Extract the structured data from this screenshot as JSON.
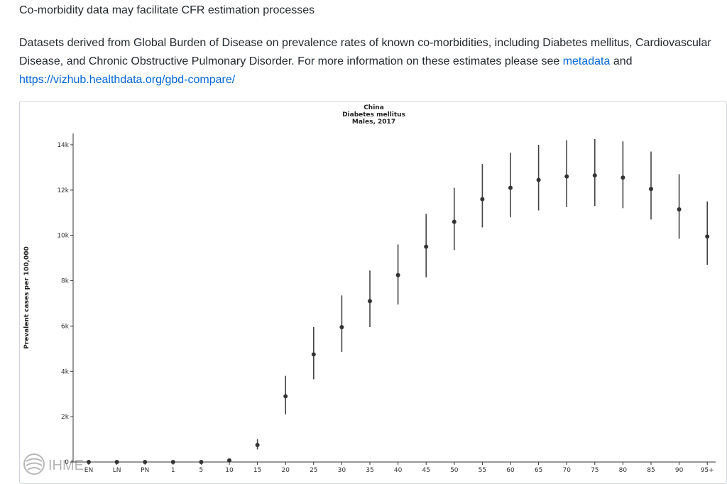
{
  "section": {
    "heading": "Co-morbidity data may facilitate CFR estimation processes",
    "paragraph": "Datasets derived from Global Burden of Disease on prevalence rates of known co-morbidities, including Diabetes mellitus, Cardiovascular Disease, and Chronic Obstructive Pulmonary Disorder. For more information on these estimates please see ",
    "link_metadata": "metadata",
    "and_text": " and ",
    "link_gbd": "https://vizhub.healthdata.org/gbd-compare/"
  },
  "logo": {
    "text": "IHME"
  },
  "colors": {
    "point": "#333333",
    "errorbar": "#444444",
    "link": "#0366d6"
  },
  "chart_data": {
    "type": "scatter",
    "title_lines": [
      "China",
      "Diabetes mellitus",
      "Males, 2017"
    ],
    "xlabel": "",
    "ylabel": "Prevalent cases per 100,000",
    "categories": [
      "EN",
      "LN",
      "PN",
      "1",
      "5",
      "10",
      "15",
      "20",
      "25",
      "30",
      "35",
      "40",
      "45",
      "50",
      "55",
      "60",
      "65",
      "70",
      "75",
      "80",
      "85",
      "90",
      "95+"
    ],
    "values": [
      0,
      0,
      0,
      0,
      0,
      70,
      750,
      2900,
      4750,
      5950,
      7100,
      8250,
      9500,
      10600,
      11600,
      12100,
      12450,
      12600,
      12650,
      12550,
      12050,
      11150,
      9950
    ],
    "lower": [
      0,
      0,
      0,
      0,
      0,
      50,
      550,
      2100,
      3650,
      4850,
      5950,
      6950,
      8150,
      9350,
      10350,
      10800,
      11100,
      11250,
      11300,
      11200,
      10700,
      9850,
      8700
    ],
    "upper": [
      0,
      0,
      0,
      0,
      0,
      95,
      1000,
      3800,
      5950,
      7350,
      8450,
      9600,
      10950,
      12100,
      13150,
      13650,
      14000,
      14200,
      14250,
      14150,
      13700,
      12700,
      11500
    ],
    "ylim": [
      0,
      14500
    ],
    "yticks": [
      0,
      2000,
      4000,
      6000,
      8000,
      10000,
      12000,
      14000
    ],
    "ytick_labels": [
      "0",
      "2k",
      "4k",
      "6k",
      "8k",
      "10k",
      "12k",
      "14k"
    ],
    "grid": false,
    "legend": "none"
  }
}
